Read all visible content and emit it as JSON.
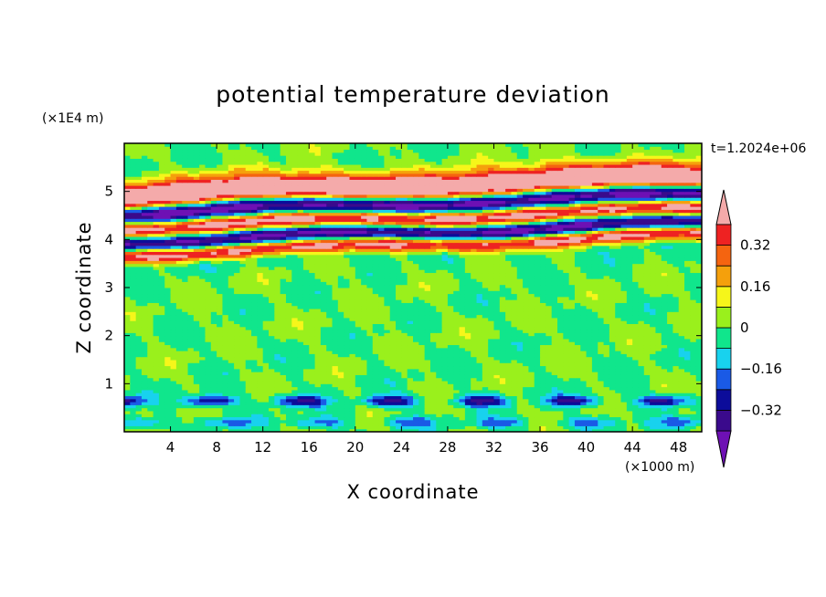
{
  "chart_data": {
    "type": "heatmap",
    "title": "potential temperature deviation",
    "xlabel": "X coordinate",
    "ylabel": "Z coordinate",
    "x_unit": "(×1000 m)",
    "y_unit": "(×1E4 m)",
    "time_label": "t=1.2024e+06",
    "xlim": [
      0,
      50
    ],
    "ylim": [
      0,
      6
    ],
    "x_ticks": [
      4,
      8,
      12,
      16,
      20,
      24,
      28,
      32,
      36,
      40,
      44,
      48
    ],
    "y_ticks": [
      1,
      2,
      3,
      4,
      5
    ],
    "colorbar": {
      "levels": [
        -0.4,
        -0.32,
        -0.24,
        -0.16,
        -0.08,
        0,
        0.08,
        0.16,
        0.24,
        0.32,
        0.4
      ],
      "labels": [
        "0.32",
        "0.16",
        "0",
        "−0.16",
        "−0.32"
      ],
      "label_values": [
        0.32,
        0.16,
        0,
        -0.16,
        -0.32
      ],
      "colors": [
        "#3a0a8c",
        "#0c0c9a",
        "#1a5ae6",
        "#18d2ee",
        "#10e68c",
        "#9af01c",
        "#f6f61a",
        "#f5a00c",
        "#f56410",
        "#ee2222"
      ],
      "over_color": "#f4aaaa",
      "under_color": "#6e10b4",
      "extend": "both"
    },
    "bands": [
      {
        "z": 5.45,
        "value": 0.1
      },
      {
        "z": 5.25,
        "value": 0.4
      },
      {
        "z": 5.05,
        "value": 0.45
      },
      {
        "z": 4.75,
        "value": -0.45
      },
      {
        "z": 4.45,
        "value": 0.45
      },
      {
        "z": 4.15,
        "value": -0.45
      },
      {
        "z": 3.9,
        "value": 0.45
      },
      {
        "z": 3.7,
        "value": -0.05
      },
      {
        "z": 0.65,
        "value": -0.35
      },
      {
        "z": 0.2,
        "value": -0.2
      }
    ]
  }
}
